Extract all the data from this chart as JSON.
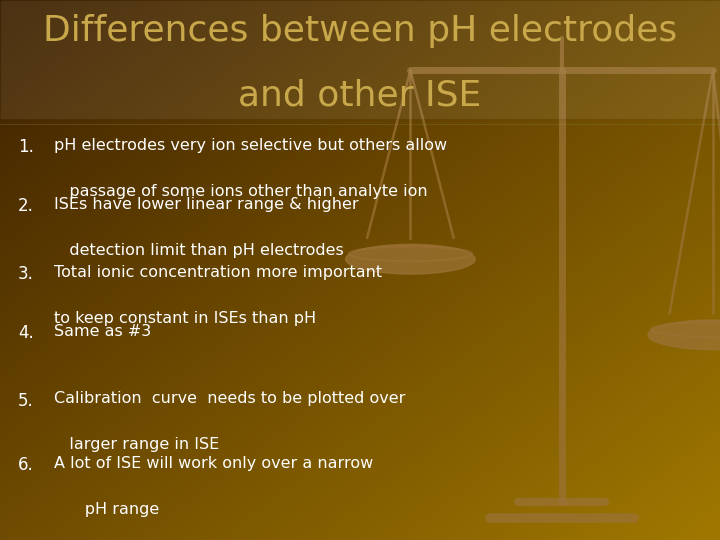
{
  "title_line1": "Differences between pH electrodes",
  "title_line2": "and other ISE",
  "title_color": "#c8a84b",
  "bg_color_tl": "#3d2000",
  "bg_color_br": "#a07800",
  "text_color": "#ffffff",
  "title_fontsize": 26,
  "body_fontsize": 11.5,
  "scale_color": "#9b7235",
  "scale_alpha": 0.75,
  "items": [
    {
      "num": "1.",
      "line1": "pH electrodes very ion selective but others allow",
      "line2": "   passage of some ions other than analyte ion"
    },
    {
      "num": "2.",
      "line1": "ISEs have lower linear range & higher",
      "line2": "   detection limit than pH electrodes"
    },
    {
      "num": "3.",
      "line1": "Total ionic concentration more important",
      "line2": "to keep constant in ISEs than pH"
    },
    {
      "num": "4.",
      "line1": "Same as #3",
      "line2": ""
    },
    {
      "num": "5.",
      "line1": "Calibration  curve  needs to be plotted over",
      "line2": "   larger range in ISE"
    },
    {
      "num": "6.",
      "line1": "A lot of ISE will work only over a narrow",
      "line2": "      pH range"
    }
  ]
}
